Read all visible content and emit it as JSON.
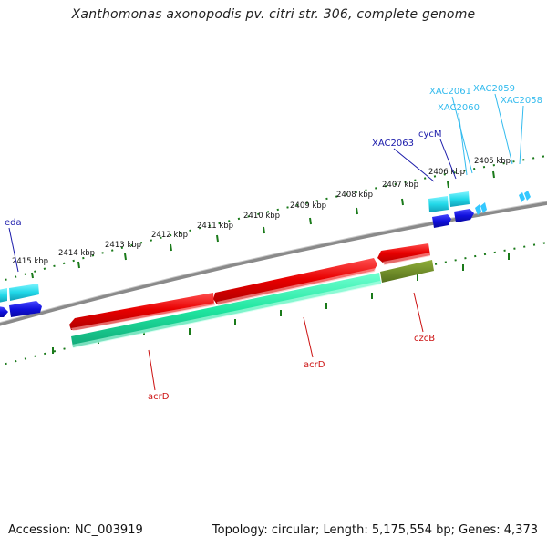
{
  "title": "Xanthomonas axonopodis pv. citri str. 306, complete genome",
  "footer": {
    "accession": "Accession: NC_003919",
    "summary": "Topology: circular; Length: 5,175,554 bp; Genes: 4,373"
  },
  "ticks": [
    "2405 kbp",
    "2406 kbp",
    "2407 kbp",
    "2408 kbp",
    "2409 kbp",
    "2410 kbp",
    "2411 kbp",
    "2412 kbp",
    "2413 kbp",
    "2414 kbp",
    "2415 kbp"
  ],
  "gene_labels": {
    "eda": "eda",
    "xac2063": "XAC2063",
    "cycm": "cycM",
    "xac2061": "XAC2061",
    "xac2060": "XAC2060",
    "xac2059": "XAC2059",
    "xac2058": "XAC2058",
    "acrd_left": "acrD",
    "acrd_right": "acrD",
    "czcb": "czcB"
  },
  "colors": {
    "backbone": "#7f7f7f",
    "tick_marks": "#1a7a1a",
    "red_gene": "#e80000",
    "green_gene": "#1fe6a0",
    "olive_gene": "#6f8a2a",
    "cyan_gene": "#22d8e8",
    "blue_gene": "#1010dd",
    "label_blue": "#1a1aaa",
    "label_cyan": "#33bbee",
    "label_red": "#cc1111"
  }
}
